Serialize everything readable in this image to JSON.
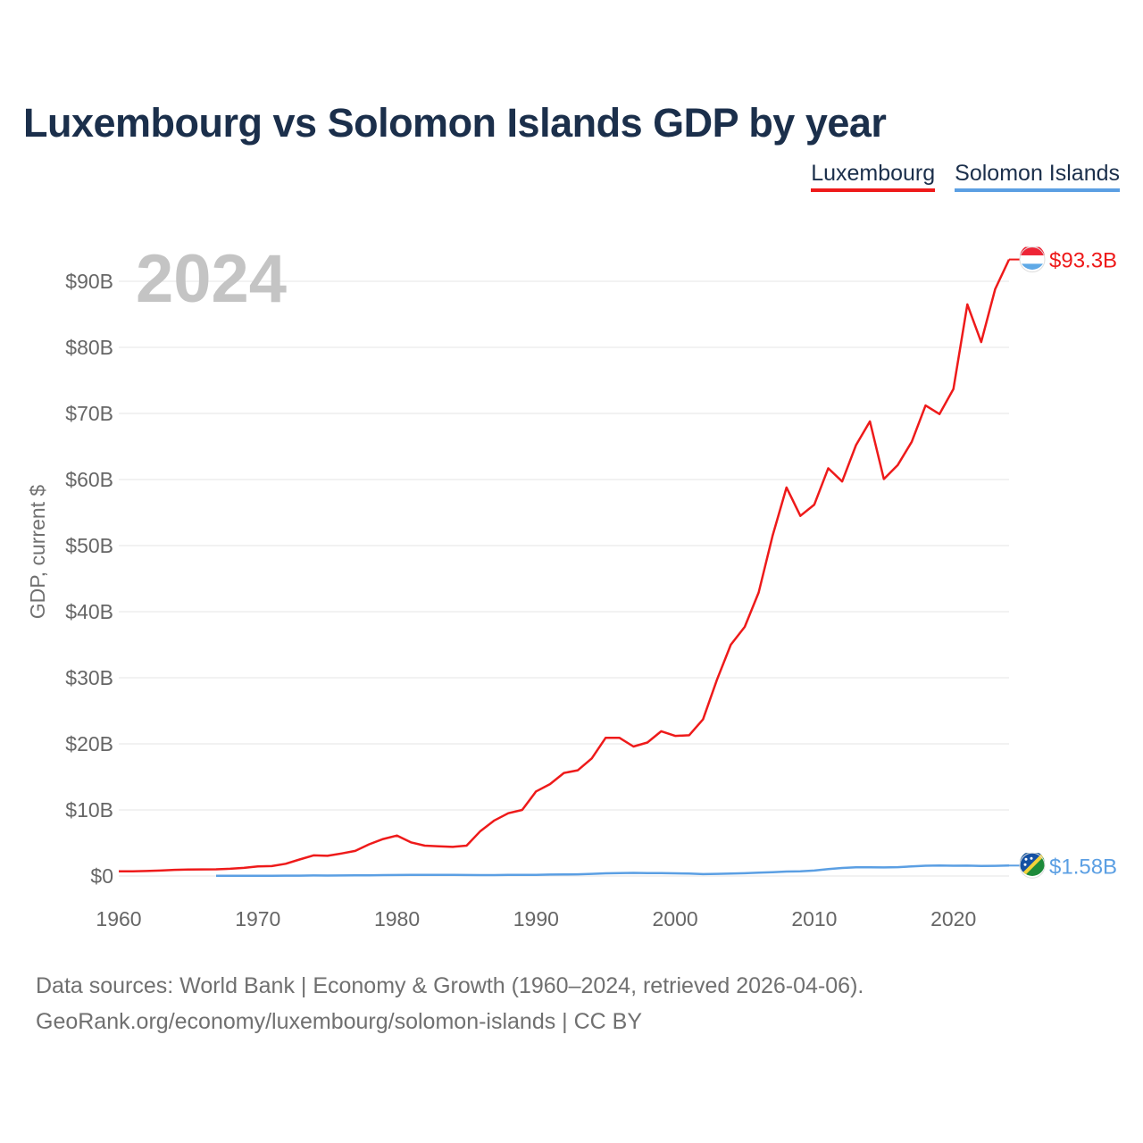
{
  "header": {
    "title": "Luxembourg vs Solomon Islands GDP by year"
  },
  "legend": {
    "items": [
      "Luxembourg",
      "Solomon Islands"
    ]
  },
  "footer": {
    "line1": "Data sources: World Bank | Economy & Growth (1960–2024, retrieved 2026-04-06).",
    "line2": "GeoRank.org/economy/luxembourg/solomon-islands | CC BY"
  },
  "chart_data": {
    "type": "line",
    "title": "Luxembourg vs Solomon Islands GDP by year",
    "xlabel": "",
    "ylabel": "GDP, current $",
    "year_watermark": "2024",
    "xlim": [
      1960,
      2024
    ],
    "ylim": [
      0,
      95
    ],
    "x_ticks": [
      1960,
      1970,
      1980,
      1990,
      2000,
      2010,
      2020
    ],
    "x_tick_labels": [
      "1960",
      "1970",
      "1980",
      "1990",
      "2000",
      "2010",
      "2020"
    ],
    "y_ticks": [
      0,
      10,
      20,
      30,
      40,
      50,
      60,
      70,
      80,
      90
    ],
    "y_tick_labels": [
      "$0",
      "$10B",
      "$20B",
      "$30B",
      "$40B",
      "$50B",
      "$60B",
      "$70B",
      "$80B",
      "$90B"
    ],
    "grid": true,
    "legend_position": "top-right",
    "series": [
      {
        "name": "Luxembourg",
        "color": "#ee1a1a",
        "end_label": "$93.3B",
        "flag_icon": "luxembourg-flag-icon",
        "x": [
          1960,
          1961,
          1962,
          1963,
          1964,
          1965,
          1966,
          1967,
          1968,
          1969,
          1970,
          1971,
          1972,
          1973,
          1974,
          1975,
          1976,
          1977,
          1978,
          1979,
          1980,
          1981,
          1982,
          1983,
          1984,
          1985,
          1986,
          1987,
          1988,
          1989,
          1990,
          1991,
          1992,
          1993,
          1994,
          1995,
          1996,
          1997,
          1998,
          1999,
          2000,
          2001,
          2002,
          2003,
          2004,
          2005,
          2006,
          2007,
          2008,
          2009,
          2010,
          2011,
          2012,
          2013,
          2014,
          2015,
          2016,
          2017,
          2018,
          2019,
          2020,
          2021,
          2022,
          2023,
          2024
        ],
        "values": [
          0.7,
          0.72,
          0.76,
          0.83,
          0.93,
          0.97,
          1.0,
          1.01,
          1.09,
          1.23,
          1.45,
          1.5,
          1.85,
          2.5,
          3.12,
          3.06,
          3.4,
          3.8,
          4.8,
          5.6,
          6.12,
          5.1,
          4.6,
          4.5,
          4.4,
          4.6,
          6.8,
          8.4,
          9.5,
          10.0,
          12.8,
          13.9,
          15.6,
          16.0,
          17.8,
          20.9,
          20.9,
          19.6,
          20.2,
          21.9,
          21.2,
          21.3,
          23.7,
          29.7,
          35.0,
          37.7,
          42.9,
          51.5,
          58.8,
          54.5,
          56.2,
          61.7,
          59.7,
          65.2,
          68.8,
          60.07,
          62.2,
          65.7,
          71.2,
          69.9,
          73.7,
          86.5,
          80.8,
          88.8,
          93.3
        ]
      },
      {
        "name": "Solomon Islands",
        "color": "#5b9fe3",
        "end_label": "$1.58B",
        "flag_icon": "solomon-islands-flag-icon",
        "x": [
          1967,
          1968,
          1969,
          1970,
          1971,
          1972,
          1973,
          1974,
          1975,
          1976,
          1977,
          1978,
          1979,
          1980,
          1981,
          1982,
          1983,
          1984,
          1985,
          1986,
          1987,
          1988,
          1989,
          1990,
          1991,
          1992,
          1993,
          1994,
          1995,
          1996,
          1997,
          1998,
          1999,
          2000,
          2001,
          2002,
          2003,
          2004,
          2005,
          2006,
          2007,
          2008,
          2009,
          2010,
          2011,
          2012,
          2013,
          2014,
          2015,
          2016,
          2017,
          2018,
          2019,
          2020,
          2021,
          2022,
          2023,
          2024
        ],
        "values": [
          0.03,
          0.03,
          0.03,
          0.04,
          0.04,
          0.05,
          0.06,
          0.08,
          0.07,
          0.08,
          0.09,
          0.11,
          0.13,
          0.15,
          0.17,
          0.16,
          0.16,
          0.17,
          0.15,
          0.13,
          0.14,
          0.17,
          0.17,
          0.18,
          0.21,
          0.23,
          0.25,
          0.33,
          0.4,
          0.44,
          0.47,
          0.44,
          0.43,
          0.41,
          0.36,
          0.29,
          0.32,
          0.38,
          0.42,
          0.5,
          0.58,
          0.67,
          0.71,
          0.83,
          1.04,
          1.21,
          1.31,
          1.32,
          1.3,
          1.34,
          1.44,
          1.56,
          1.59,
          1.55,
          1.57,
          1.51,
          1.54,
          1.58
        ]
      }
    ]
  }
}
